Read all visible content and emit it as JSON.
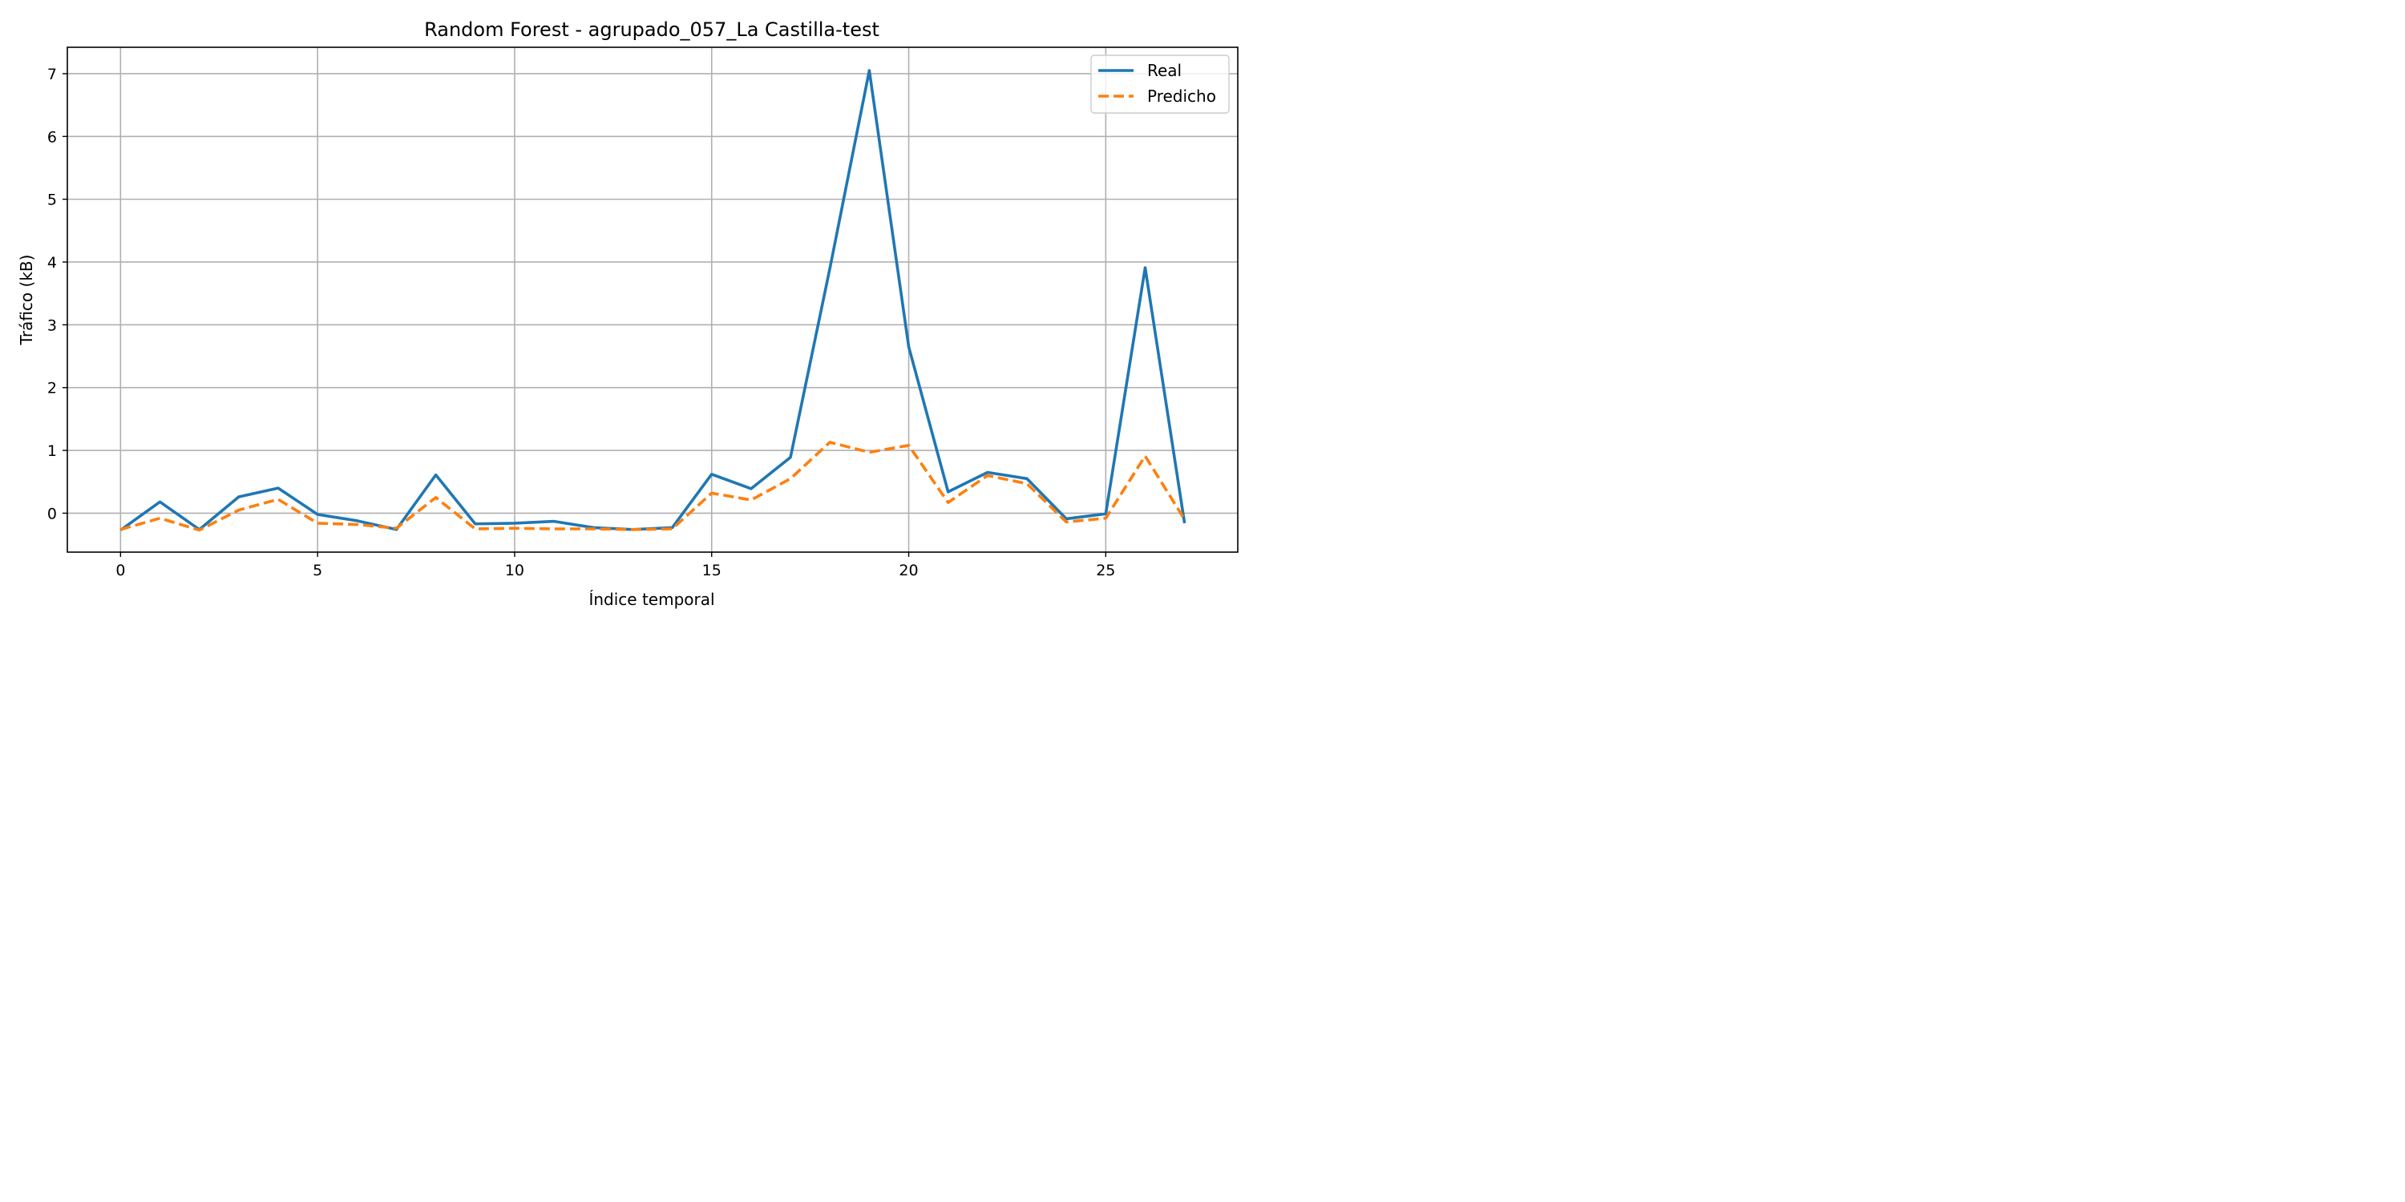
{
  "chart_data": {
    "type": "line",
    "title": "Random Forest - agrupado_057_La Castilla-test",
    "xlabel": "Índice temporal",
    "ylabel": "Tráfico (kB)",
    "xlim": [
      -1.35,
      28.35
    ],
    "ylim": [
      -0.62,
      7.42
    ],
    "x_ticks": [
      0,
      5,
      10,
      15,
      20,
      25
    ],
    "y_ticks": [
      0,
      1,
      2,
      3,
      4,
      5,
      6,
      7
    ],
    "grid": true,
    "legend_position": "top-right",
    "x": [
      0,
      1,
      2,
      3,
      4,
      5,
      6,
      7,
      8,
      9,
      10,
      11,
      12,
      13,
      14,
      15,
      16,
      17,
      18,
      19,
      20,
      21,
      22,
      23,
      24,
      25,
      26,
      27
    ],
    "series": [
      {
        "name": "Real",
        "color": "#1f77b4",
        "style": "solid",
        "values": [
          -0.27,
          0.18,
          -0.26,
          0.26,
          0.4,
          -0.02,
          -0.12,
          -0.26,
          0.61,
          -0.17,
          -0.16,
          -0.13,
          -0.23,
          -0.26,
          -0.23,
          0.62,
          0.39,
          0.89,
          3.9,
          7.05,
          2.65,
          0.34,
          0.65,
          0.55,
          -0.09,
          -0.01,
          3.91,
          -0.16
        ]
      },
      {
        "name": "Predicho",
        "color": "#ff7f0e",
        "style": "dashed",
        "values": [
          -0.26,
          -0.08,
          -0.27,
          0.05,
          0.22,
          -0.16,
          -0.18,
          -0.24,
          0.25,
          -0.25,
          -0.24,
          -0.25,
          -0.25,
          -0.26,
          -0.25,
          0.32,
          0.21,
          0.55,
          1.13,
          0.97,
          1.08,
          0.17,
          0.6,
          0.47,
          -0.14,
          -0.08,
          0.91,
          -0.1
        ]
      }
    ]
  }
}
